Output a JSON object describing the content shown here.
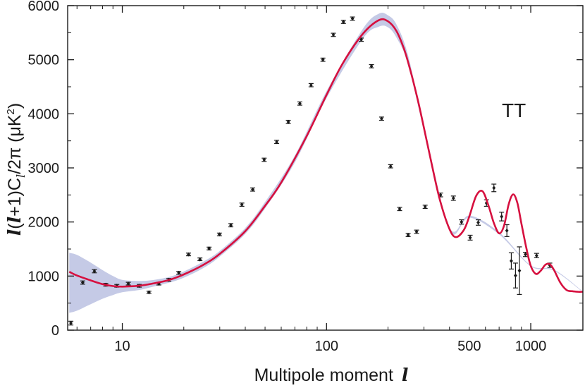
{
  "chart_data": {
    "type": "scatter",
    "title": "",
    "annotation": "TT",
    "xlabel": "Multipole moment",
    "xlabel_symbol": "l",
    "ylabel_parts": [
      "l",
      "(",
      "l",
      "+1)C",
      "l",
      "/2π (μK",
      "2",
      ")"
    ],
    "x_scale": "log",
    "xlim": [
      5.4,
      1800
    ],
    "ylim": [
      0,
      6000
    ],
    "x_ticks": [
      10,
      100,
      500,
      1000
    ],
    "x_tick_labels": [
      "10",
      "100",
      "500",
      "1000"
    ],
    "y_ticks": [
      0,
      1000,
      2000,
      3000,
      4000,
      5000,
      6000
    ],
    "y_tick_labels": [
      "0",
      "1000",
      "2000",
      "3000",
      "4000",
      "5000",
      "6000"
    ],
    "grid": false,
    "colors": {
      "model_line": "#d6103f",
      "uncertainty_band": "#c5cae6",
      "data_points": "#1a1a1a",
      "axes": "#1a1a1a"
    },
    "series": [
      {
        "role": "model_curve",
        "x": [
          5.5,
          6,
          7,
          8,
          9,
          10,
          12,
          14,
          17,
          20,
          25,
          30,
          40,
          50,
          60,
          80,
          100,
          120,
          150,
          180,
          200,
          220,
          240,
          260,
          280,
          300,
          330,
          360,
          400,
          430,
          470,
          500,
          540,
          580,
          620,
          660,
          700,
          740,
          780,
          820,
          860,
          900,
          950,
          1000,
          1060,
          1120,
          1180,
          1240,
          1300,
          1400,
          1500,
          1600,
          1700,
          1800
        ],
        "y": [
          1080,
          1010,
          920,
          850,
          815,
          805,
          820,
          860,
          930,
          1030,
          1210,
          1410,
          1830,
          2300,
          2730,
          3590,
          4350,
          4930,
          5470,
          5730,
          5710,
          5530,
          5190,
          4740,
          4250,
          3740,
          3010,
          2390,
          1870,
          1720,
          1850,
          2100,
          2480,
          2570,
          2310,
          1980,
          1790,
          1930,
          2330,
          2510,
          2350,
          1970,
          1530,
          1190,
          1040,
          1100,
          1210,
          1220,
          1110,
          870,
          740,
          720,
          710,
          710
        ]
      },
      {
        "role": "uncertainty_band",
        "x": [
          5.5,
          6,
          7,
          8,
          9,
          10,
          12,
          14,
          17,
          20,
          25,
          30,
          40,
          50,
          70,
          100,
          150,
          180,
          200,
          220,
          250,
          300,
          400,
          500,
          700,
          1000,
          1300,
          1800
        ],
        "y_low": [
          320,
          360,
          480,
          580,
          650,
          700,
          740,
          800,
          880,
          970,
          1150,
          1360,
          1780,
          2250,
          3100,
          4290,
          5380,
          5610,
          5600,
          5410,
          4930,
          3690,
          1840,
          2080,
          1770,
          1180,
          1100,
          705
        ],
        "y_high": [
          1430,
          1390,
          1250,
          1110,
          1000,
          930,
          910,
          925,
          985,
          1085,
          1270,
          1465,
          1890,
          2370,
          3230,
          4420,
          5560,
          5850,
          5820,
          5650,
          5100,
          3790,
          1900,
          2120,
          1810,
          1200,
          1120,
          715
        ]
      },
      {
        "role": "measurements",
        "x": [
          5.6,
          6.4,
          7.3,
          8.3,
          9.4,
          10.7,
          12.1,
          13.5,
          15.1,
          16.9,
          18.9,
          21.1,
          24.0,
          26.6,
          29.9,
          34.0,
          38.5,
          43.5,
          49.5,
          57.0,
          65.0,
          74.0,
          84.0,
          96.0,
          108.0,
          121.0,
          134.0,
          148.0,
          166.0,
          186.0,
          206.0,
          228.0,
          251.0,
          276.0,
          304.0,
          362.0,
          418.0,
          458.0,
          505.0,
          553.0,
          607.0,
          660.0,
          720.0,
          764.0,
          803.0,
          842.0,
          880.0,
          942.0,
          1068.0,
          1240.0
        ],
        "y": [
          130,
          880,
          1090,
          840,
          820,
          860,
          820,
          700,
          860,
          930,
          1060,
          1400,
          1310,
          1510,
          1770,
          1940,
          2320,
          2600,
          3150,
          3480,
          3850,
          4190,
          4530,
          5000,
          5460,
          5700,
          5760,
          5370,
          4880,
          3910,
          3030,
          2240,
          1760,
          1820,
          2280,
          2500,
          2440,
          2000,
          1710,
          1990,
          2350,
          2630,
          2100,
          1840,
          1280,
          1010,
          1100,
          1400,
          1380,
          1200
        ],
        "err": [
          35,
          30,
          30,
          25,
          25,
          25,
          25,
          20,
          25,
          25,
          25,
          25,
          25,
          25,
          25,
          30,
          30,
          30,
          30,
          30,
          30,
          30,
          30,
          30,
          30,
          30,
          30,
          30,
          30,
          30,
          30,
          30,
          30,
          30,
          30,
          35,
          40,
          40,
          45,
          50,
          60,
          70,
          80,
          110,
          150,
          230,
          440,
          40,
          40,
          40
        ]
      }
    ]
  }
}
